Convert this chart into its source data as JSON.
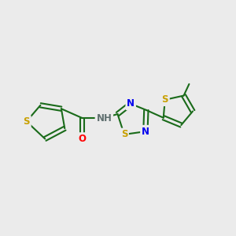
{
  "bg_color": "#ebebeb",
  "atom_colors": {
    "S": "#c8a000",
    "N": "#0000ee",
    "O": "#ff0000",
    "C": "#1a6b1a",
    "H": "#607070"
  },
  "bond_color": "#1a6b1a",
  "bond_lw": 1.5,
  "font_size": 8.5,
  "figsize": [
    3.0,
    3.0
  ],
  "dpi": 100,
  "xlim": [
    0,
    10
  ],
  "ylim": [
    2,
    8
  ]
}
